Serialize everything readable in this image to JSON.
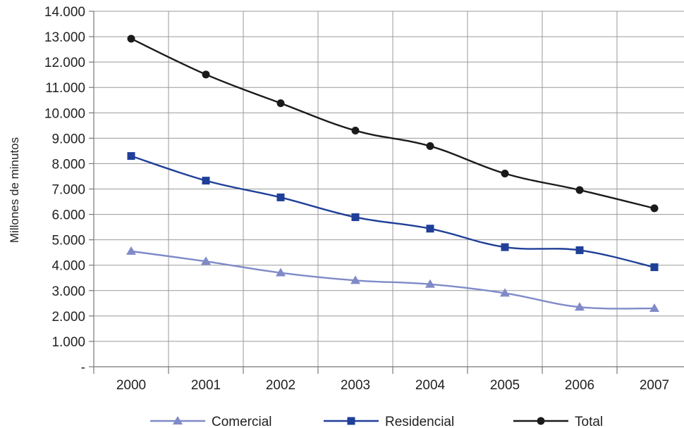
{
  "chart_data": {
    "type": "line",
    "title": "",
    "xlabel": "",
    "ylabel": "Millones de minutos",
    "categories": [
      "2000",
      "2001",
      "2002",
      "2003",
      "2004",
      "2005",
      "2006",
      "2007"
    ],
    "ylim": [
      0,
      14000
    ],
    "y_ticks": [
      "-",
      "1.000",
      "2.000",
      "3.000",
      "4.000",
      "5.000",
      "6.000",
      "7.000",
      "8.000",
      "9.000",
      "10.000",
      "11.000",
      "12.000",
      "13.000",
      "14.000"
    ],
    "grid": true,
    "legend_position": "bottom",
    "series": [
      {
        "name": "Comercial",
        "marker": "triangle",
        "color": "#7f8ac8",
        "values": [
          4550,
          4150,
          3700,
          3400,
          3250,
          2900,
          2350,
          2300
        ]
      },
      {
        "name": "Residencial",
        "marker": "square",
        "color": "#1f3f99",
        "values": [
          8300,
          7330,
          6670,
          5890,
          5440,
          4710,
          4590,
          3920
        ]
      },
      {
        "name": "Total",
        "marker": "circle",
        "color": "#1a1a1a",
        "values": [
          12920,
          11510,
          10380,
          9300,
          8690,
          7610,
          6960,
          6240
        ]
      }
    ]
  }
}
